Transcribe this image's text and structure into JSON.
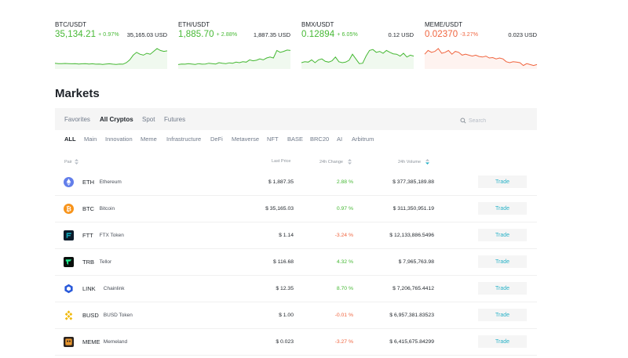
{
  "tickers": [
    {
      "pair": "BTC/USDT",
      "price": "35,134.21",
      "change": "+ 0.97%",
      "direction": "up",
      "volume": "35,165.03 USD",
      "spark": [
        0.78,
        0.8,
        0.8,
        0.79,
        0.8,
        0.81,
        0.8,
        0.82,
        0.81,
        0.8,
        0.82,
        0.81,
        0.83,
        0.82,
        0.84,
        0.82,
        0.81,
        0.83,
        0.84,
        0.82,
        0.83,
        0.75,
        0.6,
        0.35,
        0.2,
        0.3,
        0.35,
        0.25,
        0.3,
        0.15,
        0.0,
        0.1,
        0.15,
        0.12
      ]
    },
    {
      "pair": "ETH/USDT",
      "price": "1,885.70",
      "change": "+ 2.88%",
      "direction": "up",
      "volume": "1,887.35 USD",
      "spark": [
        0.85,
        0.82,
        0.83,
        0.8,
        0.82,
        0.84,
        0.8,
        0.83,
        0.82,
        0.78,
        0.8,
        0.82,
        0.75,
        0.78,
        0.8,
        0.76,
        0.78,
        0.72,
        0.75,
        0.7,
        0.72,
        0.6,
        0.65,
        0.62,
        0.55,
        0.6,
        0.5,
        0.45,
        0.5,
        0.1,
        0.2,
        0.15,
        0.08,
        0.1
      ]
    },
    {
      "pair": "BMX/USDT",
      "price": "0.12894",
      "change": "+ 6.05%",
      "direction": "up",
      "volume": "0.12 USD",
      "spark": [
        0.75,
        0.7,
        0.72,
        0.6,
        0.75,
        0.6,
        0.55,
        0.68,
        0.72,
        0.65,
        0.45,
        0.7,
        0.75,
        0.72,
        0.62,
        0.3,
        0.55,
        0.8,
        0.78,
        0.4,
        0.1,
        0.05,
        0.2,
        0.15,
        0.25,
        0.1,
        0.2,
        0.28,
        0.3,
        0.4,
        0.25,
        0.45,
        0.35,
        0.4
      ]
    },
    {
      "pair": "MEME/USDT",
      "price": "0.02370",
      "change": "-3.27%",
      "direction": "down",
      "volume": "0.023 USD",
      "spark": [
        0.3,
        0.1,
        0.2,
        0.15,
        0.0,
        0.25,
        0.2,
        0.1,
        0.3,
        0.15,
        0.2,
        0.35,
        0.3,
        0.35,
        0.4,
        0.35,
        0.42,
        0.45,
        0.4,
        0.5,
        0.48,
        0.55,
        0.5,
        0.55,
        0.7,
        0.75,
        0.7,
        0.72,
        0.75,
        0.9,
        0.8,
        0.85,
        0.9,
        0.85
      ]
    }
  ],
  "page_title": "Markets",
  "filter_tabs": [
    "Favorites",
    "All Cryptos",
    "Spot",
    "Futures"
  ],
  "active_filter_tab": "All Cryptos",
  "search": {
    "placeholder": "Search",
    "value": ""
  },
  "categories": [
    "ALL",
    "Main",
    "Innovation",
    "Meme",
    "Infrastructure",
    "DeFi",
    "Metaverse",
    "NFT",
    "BASE",
    "BRC20",
    "AI",
    "Arbitrum"
  ],
  "active_category": "ALL",
  "columns": {
    "pair": "Pair",
    "last_price": "Last Price",
    "change": "24h Change",
    "volume": "24h Volume"
  },
  "trade_label": "Trade",
  "colors": {
    "up": "#45b833",
    "down": "#f0643e",
    "accent": "#29b2c7",
    "bar_bg": "#f5f5f5"
  },
  "rows": [
    {
      "symbol": "ETH",
      "name": "Ethereum",
      "last_price": "$ 1,887.35",
      "change": "2.88 %",
      "direction": "up",
      "volume": "$ 377,385,189.88",
      "icon": "ethereum-icon",
      "icon_color": "#627eea"
    },
    {
      "symbol": "BTC",
      "name": "Bitcoin",
      "last_price": "$ 35,165.03",
      "change": "0.97 %",
      "direction": "up",
      "volume": "$ 311,350,951.19",
      "icon": "bitcoin-icon",
      "icon_color": "#f7931a"
    },
    {
      "symbol": "FTT",
      "name": "FTX Token",
      "last_price": "$ 1.14",
      "change": "-3.24 %",
      "direction": "down",
      "volume": "$ 12,133,886.5496",
      "icon": "ftx-token-icon",
      "icon_color": "#11a9bc"
    },
    {
      "symbol": "TRB",
      "name": "Tellor",
      "last_price": "$ 116.68",
      "change": "4.32 %",
      "direction": "up",
      "volume": "$ 7,965,763.98",
      "icon": "tellor-icon",
      "icon_color": "#20f092"
    },
    {
      "symbol": "LINK",
      "name": "Chainlink",
      "last_price": "$ 12.35",
      "change": "8.70 %",
      "direction": "up",
      "volume": "$ 7,206,765.4412",
      "icon": "chainlink-icon",
      "icon_color": "#2a5ada"
    },
    {
      "symbol": "BUSD",
      "name": "BUSD Token",
      "last_price": "$ 1.00",
      "change": "-0.01 %",
      "direction": "down",
      "volume": "$ 6,957,381.83523",
      "icon": "busd-icon",
      "icon_color": "#f0b90b"
    },
    {
      "symbol": "MEME",
      "name": "Memeland",
      "last_price": "$ 0.023",
      "change": "-3.27 %",
      "direction": "down",
      "volume": "$ 6,415,675.84299",
      "icon": "memeland-icon",
      "icon_color": "#e8962e"
    }
  ]
}
